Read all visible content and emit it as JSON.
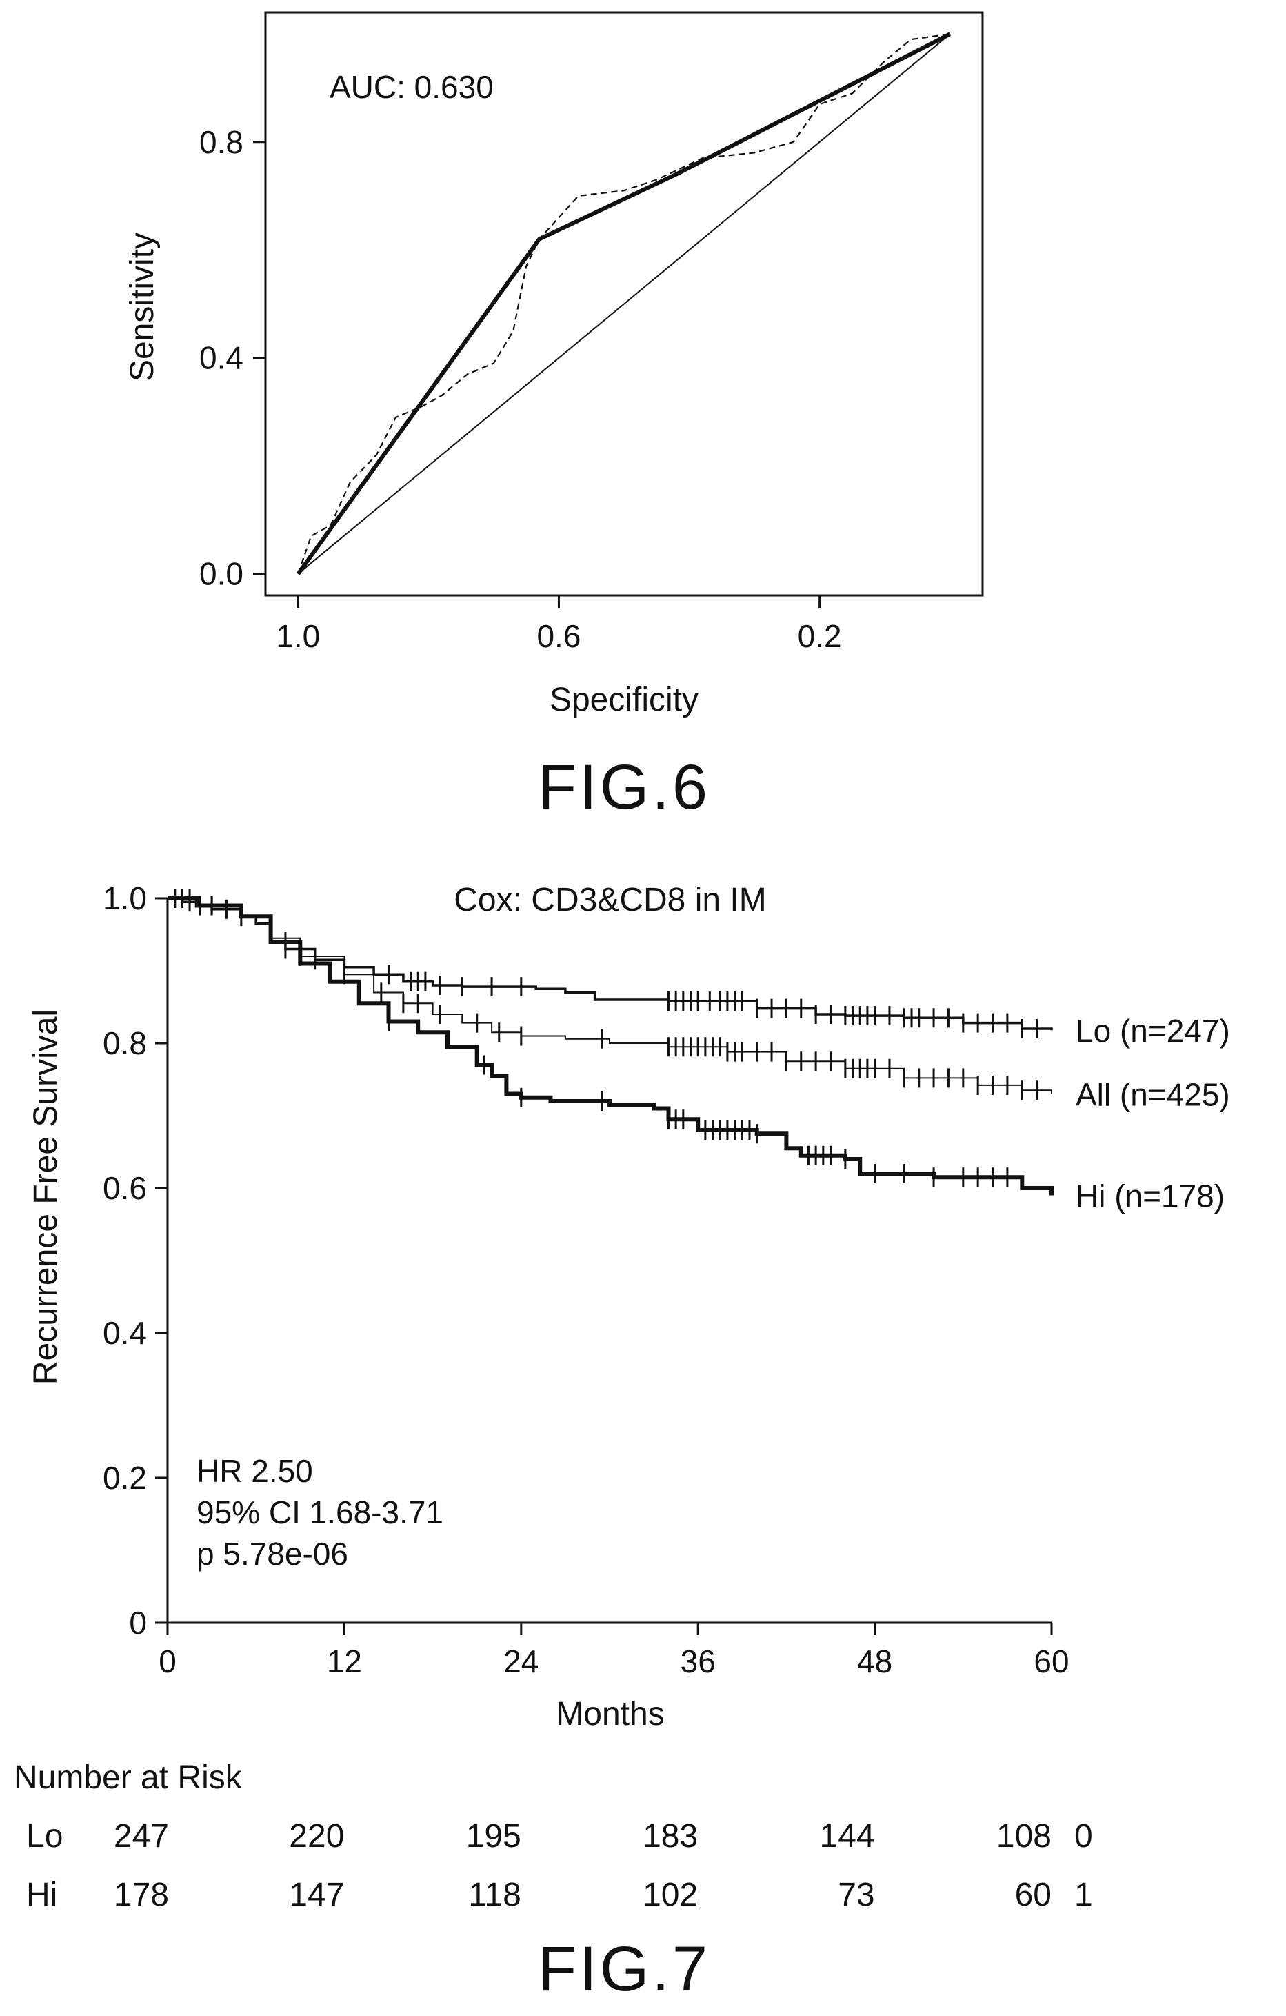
{
  "chart_data": [
    {
      "type": "line",
      "title": "",
      "figure_label": "FIG.6",
      "xlabel": "Specificity",
      "ylabel": "Sensitivity",
      "x_reversed": true,
      "xlim": [
        1.05,
        -0.05
      ],
      "ylim": [
        -0.04,
        1.04
      ],
      "xticks": [
        "1.0",
        "0.6",
        "0.2"
      ],
      "xtick_values": [
        1.0,
        0.6,
        0.2
      ],
      "yticks": [
        "0.0",
        "0.4",
        "0.8"
      ],
      "ytick_values": [
        0.0,
        0.4,
        0.8
      ],
      "annotation": "AUC: 0.630",
      "grid": false,
      "series": [
        {
          "style": "solid-thick",
          "points": [
            [
              1.0,
              0.0
            ],
            [
              0.63,
              0.62
            ],
            [
              0.42,
              0.74
            ],
            [
              0.0,
              1.0
            ]
          ]
        },
        {
          "style": "dashed",
          "points": [
            [
              1.0,
              0.0
            ],
            [
              0.98,
              0.07
            ],
            [
              0.95,
              0.09
            ],
            [
              0.92,
              0.17
            ],
            [
              0.88,
              0.22
            ],
            [
              0.85,
              0.29
            ],
            [
              0.81,
              0.31
            ],
            [
              0.78,
              0.33
            ],
            [
              0.74,
              0.37
            ],
            [
              0.7,
              0.39
            ],
            [
              0.67,
              0.45
            ],
            [
              0.65,
              0.57
            ],
            [
              0.63,
              0.62
            ],
            [
              0.6,
              0.66
            ],
            [
              0.57,
              0.7
            ],
            [
              0.5,
              0.71
            ],
            [
              0.45,
              0.73
            ],
            [
              0.38,
              0.77
            ],
            [
              0.3,
              0.78
            ],
            [
              0.24,
              0.8
            ],
            [
              0.2,
              0.87
            ],
            [
              0.15,
              0.89
            ],
            [
              0.1,
              0.95
            ],
            [
              0.06,
              0.99
            ],
            [
              0.0,
              1.0
            ]
          ]
        },
        {
          "style": "solid-thin",
          "points": [
            [
              1.0,
              0.0
            ],
            [
              0.0,
              1.0
            ]
          ]
        }
      ]
    },
    {
      "type": "line",
      "title": "Cox: CD3&CD8 in IM",
      "figure_label": "FIG.7",
      "xlabel": "Months",
      "ylabel": "Recurrence Free Survival",
      "xlim": [
        0,
        60
      ],
      "ylim": [
        0,
        1.0
      ],
      "xticks": [
        "0",
        "12",
        "24",
        "36",
        "48",
        "60"
      ],
      "xtick_values": [
        0,
        12,
        24,
        36,
        48,
        60
      ],
      "yticks": [
        "0",
        "0.2",
        "0.4",
        "0.6",
        "0.8",
        "1.0"
      ],
      "ytick_values": [
        0,
        0.2,
        0.4,
        0.6,
        0.8,
        1.0
      ],
      "grid": false,
      "annotations": [
        "HR 2.50",
        "95% CI 1.68-3.71",
        "p 5.78e-06"
      ],
      "series": [
        {
          "name": "Lo",
          "label": "Lo (n=247)",
          "style": "solid-medium",
          "points": [
            [
              0,
              1.0
            ],
            [
              1,
              0.995
            ],
            [
              2,
              0.99
            ],
            [
              3,
              0.985
            ],
            [
              5,
              0.975
            ],
            [
              6,
              0.965
            ],
            [
              7,
              0.94
            ],
            [
              8,
              0.93
            ],
            [
              10,
              0.915
            ],
            [
              12,
              0.905
            ],
            [
              14,
              0.895
            ],
            [
              16,
              0.885
            ],
            [
              18,
              0.88
            ],
            [
              20,
              0.878
            ],
            [
              25,
              0.875
            ],
            [
              27,
              0.87
            ],
            [
              29,
              0.86
            ],
            [
              34,
              0.858
            ],
            [
              40,
              0.848
            ],
            [
              44,
              0.84
            ],
            [
              46,
              0.838
            ],
            [
              50,
              0.835
            ],
            [
              54,
              0.828
            ],
            [
              58,
              0.82
            ],
            [
              60,
              0.818
            ]
          ],
          "censor_times": [
            0.5,
            1.5,
            2.2,
            4,
            8,
            10,
            15,
            16.5,
            17,
            17.5,
            18.5,
            20,
            22,
            24,
            34,
            34.5,
            35,
            35.5,
            36,
            36.8,
            37.5,
            38,
            38.5,
            39,
            40,
            41,
            42,
            43,
            44,
            45,
            46,
            46.5,
            47,
            47.5,
            48,
            49,
            50,
            50.5,
            51,
            52,
            53,
            54,
            55,
            56,
            57,
            58,
            59
          ]
        },
        {
          "name": "All",
          "label": "All (n=425)",
          "style": "solid-thin",
          "points": [
            [
              0,
              1.0
            ],
            [
              2,
              0.99
            ],
            [
              5,
              0.975
            ],
            [
              7,
              0.945
            ],
            [
              9,
              0.92
            ],
            [
              12,
              0.895
            ],
            [
              14,
              0.87
            ],
            [
              16,
              0.855
            ],
            [
              18,
              0.84
            ],
            [
              20,
              0.828
            ],
            [
              22,
              0.815
            ],
            [
              24,
              0.81
            ],
            [
              27,
              0.806
            ],
            [
              30,
              0.8
            ],
            [
              34,
              0.795
            ],
            [
              38,
              0.788
            ],
            [
              42,
              0.775
            ],
            [
              46,
              0.765
            ],
            [
              50,
              0.752
            ],
            [
              55,
              0.742
            ],
            [
              58,
              0.735
            ],
            [
              60,
              0.73
            ]
          ],
          "censor_times": [
            0.5,
            1.5,
            3,
            5,
            9,
            12,
            14.5,
            16,
            17,
            18.5,
            21,
            22.5,
            24,
            29.5,
            34,
            34.5,
            35,
            35.5,
            36,
            36.5,
            37,
            37.5,
            38,
            38.5,
            39,
            40,
            41,
            42,
            43,
            44,
            45,
            46,
            46.5,
            47,
            47.5,
            48,
            49,
            50,
            51,
            52,
            53,
            54,
            55,
            56,
            57,
            58,
            59
          ]
        },
        {
          "name": "Hi",
          "label": "Hi (n=178)",
          "style": "solid-thick",
          "points": [
            [
              0,
              1.0
            ],
            [
              2,
              0.99
            ],
            [
              5,
              0.975
            ],
            [
              7,
              0.94
            ],
            [
              9,
              0.91
            ],
            [
              11,
              0.885
            ],
            [
              13,
              0.855
            ],
            [
              15,
              0.83
            ],
            [
              17,
              0.815
            ],
            [
              19,
              0.795
            ],
            [
              21,
              0.77
            ],
            [
              22,
              0.755
            ],
            [
              23,
              0.73
            ],
            [
              24,
              0.725
            ],
            [
              26,
              0.72
            ],
            [
              30,
              0.715
            ],
            [
              33,
              0.71
            ],
            [
              34,
              0.695
            ],
            [
              36,
              0.68
            ],
            [
              40,
              0.675
            ],
            [
              42,
              0.655
            ],
            [
              43,
              0.645
            ],
            [
              46,
              0.64
            ],
            [
              47,
              0.62
            ],
            [
              52,
              0.615
            ],
            [
              58,
              0.6
            ],
            [
              60,
              0.59
            ]
          ],
          "censor_times": [
            1,
            3,
            8,
            15,
            21.5,
            24,
            29.5,
            34,
            34.5,
            35,
            36.5,
            37,
            37.5,
            38,
            38.5,
            39,
            39.5,
            40,
            43.5,
            44,
            44.5,
            45,
            46,
            48,
            50,
            52,
            54,
            55,
            56,
            57
          ]
        }
      ],
      "risk_table": {
        "title": "Number at Risk",
        "times": [
          0,
          12,
          24,
          36,
          48,
          60
        ],
        "rows": [
          {
            "group": "Lo",
            "counts": [
              "247",
              "220",
              "195",
              "183",
              "144",
              "108"
            ],
            "trailing": "0"
          },
          {
            "group": "Hi",
            "counts": [
              "178",
              "147",
              "118",
              "102",
              "73",
              "60"
            ],
            "trailing": "1"
          }
        ]
      }
    }
  ]
}
